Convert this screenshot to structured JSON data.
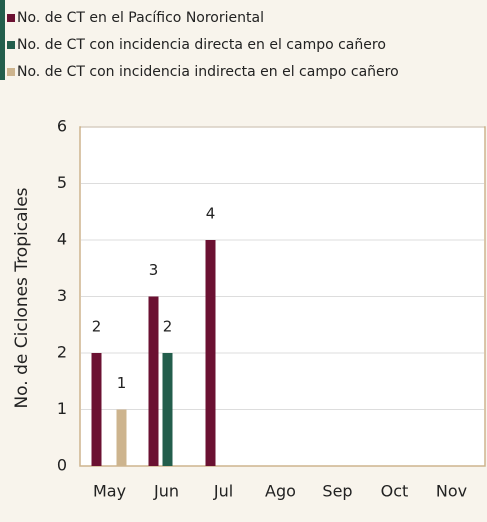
{
  "chart_data": {
    "type": "bar",
    "y_label": "No. de Ciclones Tropicales",
    "categories": [
      "May",
      "Jun",
      "Jul",
      "Ago",
      "Sep",
      "Oct",
      "Nov"
    ],
    "series": [
      {
        "name": "No. de CT en el Pacífico Nororiental",
        "color": "#6b1132",
        "values": [
          2,
          3,
          4,
          0,
          0,
          0,
          0
        ]
      },
      {
        "name": "No. de CT con incidencia directa en el campo cañero",
        "color": "#235e4c",
        "values": [
          0,
          2,
          0,
          0,
          0,
          0,
          0
        ]
      },
      {
        "name": "No. de CT con incidencia indirecta en el campo cañero",
        "color": "#cdb48e",
        "values": [
          1,
          0,
          0,
          0,
          0,
          0,
          0
        ]
      }
    ],
    "ylim": [
      0,
      6
    ],
    "yticks": [
      0,
      1,
      2,
      3,
      4,
      5,
      6
    ],
    "grid": true,
    "legend": "top"
  }
}
